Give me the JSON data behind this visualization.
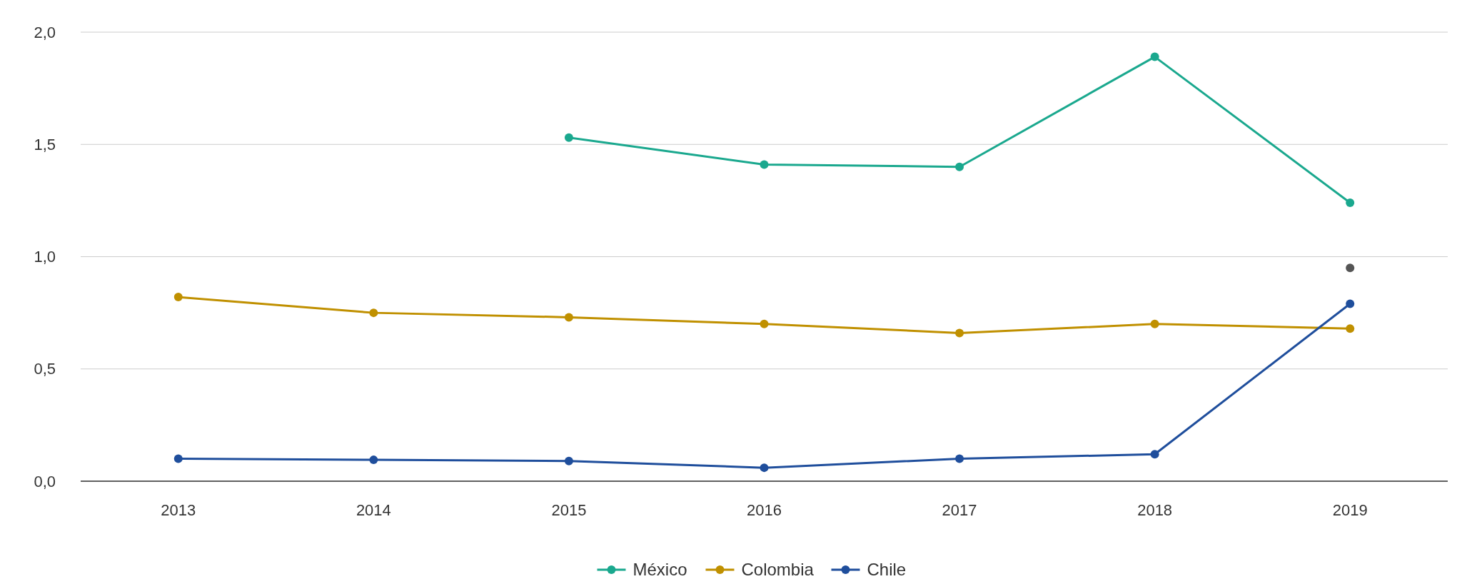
{
  "chart_data": {
    "type": "line",
    "categories": [
      "2013",
      "2014",
      "2015",
      "2016",
      "2017",
      "2018",
      "2019"
    ],
    "series": [
      {
        "name": "México",
        "color": "#1aa88e",
        "values": [
          null,
          null,
          1.53,
          1.41,
          1.4,
          1.89,
          1.24
        ]
      },
      {
        "name": "Colombia",
        "color": "#c09000",
        "values": [
          0.82,
          0.75,
          0.73,
          0.7,
          0.66,
          0.7,
          0.68
        ]
      },
      {
        "name": "Chile",
        "color": "#1f4e9c",
        "values": [
          0.1,
          0.095,
          0.09,
          0.06,
          0.1,
          0.12,
          0.79
        ]
      },
      {
        "color": "#555555",
        "values": [
          null,
          null,
          null,
          null,
          null,
          null,
          0.95
        ]
      }
    ],
    "ylim": [
      0,
      2
    ],
    "yticks": [
      {
        "value": 0,
        "label": "0,0"
      },
      {
        "value": 0.5,
        "label": "0,5"
      },
      {
        "value": 1,
        "label": "1,0"
      },
      {
        "value": 1.5,
        "label": "1,5"
      },
      {
        "value": 2,
        "label": "2,0"
      }
    ],
    "grid": "y",
    "legend": "bottom",
    "marker": "circle",
    "line_style": "solid"
  }
}
